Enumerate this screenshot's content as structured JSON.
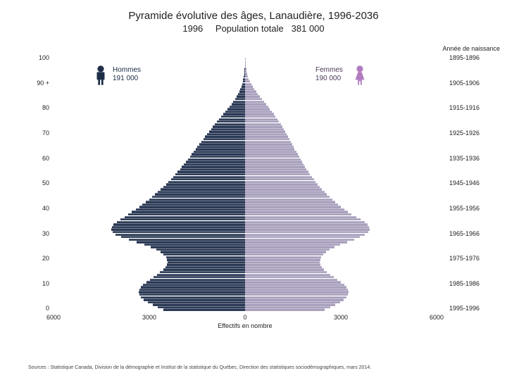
{
  "title": {
    "main": "Pyramide évolutive des âges, Lanaudière, 1996-2036",
    "year": "1996",
    "population_label": "Population totale",
    "population_value": "381 000",
    "title_fontsize": 15,
    "sub_fontsize": 13
  },
  "annee_naissance_label": "Année de naissance",
  "legend": {
    "hommes_label": "Hommes",
    "hommes_value": "191 000",
    "femmes_label": "Femmes",
    "femmes_value": "190 000"
  },
  "colors": {
    "male": "#2b3a55",
    "female": "#a9a0bd",
    "male_icon": "#1f2e48",
    "female_icon": "#b07bbf",
    "background": "#ffffff",
    "text": "#222222"
  },
  "pyramid": {
    "type": "population-pyramid",
    "x_axis": {
      "label": "Effectifs en nombre",
      "max": 6000,
      "ticks": [
        6000,
        3000,
        0,
        3000,
        6000
      ]
    },
    "y_axis_left": {
      "ticks": [
        {
          "age": 100,
          "label": "100"
        },
        {
          "age": 90,
          "label": "90 +"
        },
        {
          "age": 80,
          "label": "80"
        },
        {
          "age": 70,
          "label": "70"
        },
        {
          "age": 60,
          "label": "60"
        },
        {
          "age": 50,
          "label": "50"
        },
        {
          "age": 40,
          "label": "40"
        },
        {
          "age": 30,
          "label": "30"
        },
        {
          "age": 20,
          "label": "20"
        },
        {
          "age": 10,
          "label": "10"
        },
        {
          "age": 0,
          "label": "0"
        }
      ]
    },
    "y_axis_right": {
      "ticks": [
        {
          "age": 100,
          "label": "1895-1896"
        },
        {
          "age": 90,
          "label": "1905-1906"
        },
        {
          "age": 80,
          "label": "1915-1916"
        },
        {
          "age": 70,
          "label": "1925-1926"
        },
        {
          "age": 60,
          "label": "1935-1936"
        },
        {
          "age": 50,
          "label": "1945-1946"
        },
        {
          "age": 40,
          "label": "1955-1956"
        },
        {
          "age": 30,
          "label": "1965-1966"
        },
        {
          "age": 20,
          "label": "1975-1976"
        },
        {
          "age": 10,
          "label": "1985-1986"
        },
        {
          "age": 0,
          "label": "1995-1996"
        }
      ]
    },
    "age_range": [
      0,
      100
    ],
    "bars": [
      {
        "age": 100,
        "m": 0,
        "f": 4
      },
      {
        "age": 99,
        "m": 3,
        "f": 8
      },
      {
        "age": 98,
        "m": 5,
        "f": 14
      },
      {
        "age": 97,
        "m": 8,
        "f": 24
      },
      {
        "age": 96,
        "m": 14,
        "f": 34
      },
      {
        "age": 95,
        "m": 22,
        "f": 48
      },
      {
        "age": 94,
        "m": 32,
        "f": 65
      },
      {
        "age": 93,
        "m": 45,
        "f": 90
      },
      {
        "age": 92,
        "m": 58,
        "f": 120
      },
      {
        "age": 91,
        "m": 75,
        "f": 155
      },
      {
        "age": 90,
        "m": 95,
        "f": 195
      },
      {
        "age": 89,
        "m": 120,
        "f": 240
      },
      {
        "age": 88,
        "m": 150,
        "f": 290
      },
      {
        "age": 87,
        "m": 185,
        "f": 345
      },
      {
        "age": 86,
        "m": 225,
        "f": 400
      },
      {
        "age": 85,
        "m": 270,
        "f": 460
      },
      {
        "age": 84,
        "m": 320,
        "f": 525
      },
      {
        "age": 83,
        "m": 375,
        "f": 590
      },
      {
        "age": 82,
        "m": 430,
        "f": 655
      },
      {
        "age": 81,
        "m": 490,
        "f": 720
      },
      {
        "age": 80,
        "m": 550,
        "f": 780
      },
      {
        "age": 79,
        "m": 615,
        "f": 840
      },
      {
        "age": 78,
        "m": 680,
        "f": 900
      },
      {
        "age": 77,
        "m": 745,
        "f": 955
      },
      {
        "age": 76,
        "m": 810,
        "f": 1010
      },
      {
        "age": 75,
        "m": 875,
        "f": 1065
      },
      {
        "age": 74,
        "m": 940,
        "f": 1115
      },
      {
        "age": 73,
        "m": 1005,
        "f": 1165
      },
      {
        "age": 72,
        "m": 1070,
        "f": 1215
      },
      {
        "age": 71,
        "m": 1130,
        "f": 1260
      },
      {
        "age": 70,
        "m": 1190,
        "f": 1305
      },
      {
        "age": 69,
        "m": 1250,
        "f": 1350
      },
      {
        "age": 68,
        "m": 1310,
        "f": 1395
      },
      {
        "age": 67,
        "m": 1370,
        "f": 1435
      },
      {
        "age": 66,
        "m": 1430,
        "f": 1475
      },
      {
        "age": 65,
        "m": 1490,
        "f": 1515
      },
      {
        "age": 64,
        "m": 1550,
        "f": 1555
      },
      {
        "age": 63,
        "m": 1610,
        "f": 1600
      },
      {
        "age": 62,
        "m": 1670,
        "f": 1645
      },
      {
        "age": 61,
        "m": 1730,
        "f": 1690
      },
      {
        "age": 60,
        "m": 1790,
        "f": 1735
      },
      {
        "age": 59,
        "m": 1850,
        "f": 1785
      },
      {
        "age": 58,
        "m": 1910,
        "f": 1830
      },
      {
        "age": 57,
        "m": 1975,
        "f": 1880
      },
      {
        "age": 56,
        "m": 2040,
        "f": 1930
      },
      {
        "age": 55,
        "m": 2110,
        "f": 1985
      },
      {
        "age": 54,
        "m": 2180,
        "f": 2040
      },
      {
        "age": 53,
        "m": 2250,
        "f": 2095
      },
      {
        "age": 52,
        "m": 2325,
        "f": 2155
      },
      {
        "age": 51,
        "m": 2400,
        "f": 2215
      },
      {
        "age": 50,
        "m": 2475,
        "f": 2280
      },
      {
        "age": 49,
        "m": 2555,
        "f": 2345
      },
      {
        "age": 48,
        "m": 2640,
        "f": 2415
      },
      {
        "age": 47,
        "m": 2725,
        "f": 2490
      },
      {
        "age": 46,
        "m": 2815,
        "f": 2565
      },
      {
        "age": 45,
        "m": 2910,
        "f": 2645
      },
      {
        "age": 44,
        "m": 3005,
        "f": 2730
      },
      {
        "age": 43,
        "m": 3105,
        "f": 2820
      },
      {
        "age": 42,
        "m": 3210,
        "f": 2910
      },
      {
        "age": 41,
        "m": 3320,
        "f": 3005
      },
      {
        "age": 40,
        "m": 3430,
        "f": 3105
      },
      {
        "age": 39,
        "m": 3545,
        "f": 3210
      },
      {
        "age": 38,
        "m": 3660,
        "f": 3340
      },
      {
        "age": 37,
        "m": 3780,
        "f": 3480
      },
      {
        "age": 36,
        "m": 3900,
        "f": 3620
      },
      {
        "age": 35,
        "m": 4020,
        "f": 3740
      },
      {
        "age": 34,
        "m": 4120,
        "f": 3830
      },
      {
        "age": 33,
        "m": 4180,
        "f": 3880
      },
      {
        "age": 32,
        "m": 4200,
        "f": 3900
      },
      {
        "age": 31,
        "m": 4150,
        "f": 3850
      },
      {
        "age": 30,
        "m": 4050,
        "f": 3750
      },
      {
        "age": 29,
        "m": 3880,
        "f": 3600
      },
      {
        "age": 28,
        "m": 3650,
        "f": 3420
      },
      {
        "age": 27,
        "m": 3400,
        "f": 3200
      },
      {
        "age": 26,
        "m": 3150,
        "f": 2980
      },
      {
        "age": 25,
        "m": 2950,
        "f": 2800
      },
      {
        "age": 24,
        "m": 2780,
        "f": 2650
      },
      {
        "age": 23,
        "m": 2650,
        "f": 2530
      },
      {
        "age": 22,
        "m": 2550,
        "f": 2440
      },
      {
        "age": 21,
        "m": 2480,
        "f": 2385
      },
      {
        "age": 20,
        "m": 2440,
        "f": 2350
      },
      {
        "age": 19,
        "m": 2430,
        "f": 2345
      },
      {
        "age": 18,
        "m": 2450,
        "f": 2365
      },
      {
        "age": 17,
        "m": 2500,
        "f": 2410
      },
      {
        "age": 16,
        "m": 2570,
        "f": 2480
      },
      {
        "age": 15,
        "m": 2660,
        "f": 2565
      },
      {
        "age": 14,
        "m": 2760,
        "f": 2665
      },
      {
        "age": 13,
        "m": 2870,
        "f": 2775
      },
      {
        "age": 12,
        "m": 2980,
        "f": 2885
      },
      {
        "age": 11,
        "m": 3090,
        "f": 2995
      },
      {
        "age": 10,
        "m": 3190,
        "f": 3100
      },
      {
        "age": 9,
        "m": 3270,
        "f": 3175
      },
      {
        "age": 8,
        "m": 3320,
        "f": 3225
      },
      {
        "age": 7,
        "m": 3340,
        "f": 3240
      },
      {
        "age": 6,
        "m": 3320,
        "f": 3225
      },
      {
        "age": 5,
        "m": 3260,
        "f": 3170
      },
      {
        "age": 4,
        "m": 3170,
        "f": 3080
      },
      {
        "age": 3,
        "m": 3050,
        "f": 2970
      },
      {
        "age": 2,
        "m": 2900,
        "f": 2830
      },
      {
        "age": 1,
        "m": 2740,
        "f": 2670
      },
      {
        "age": 0,
        "m": 2560,
        "f": 2500
      }
    ]
  },
  "sources": "Sources : Statistique Canada, Division de la démographie et Institut de la statistique du Québec, Direction des statistiques sociodémographiques, mars 2014."
}
